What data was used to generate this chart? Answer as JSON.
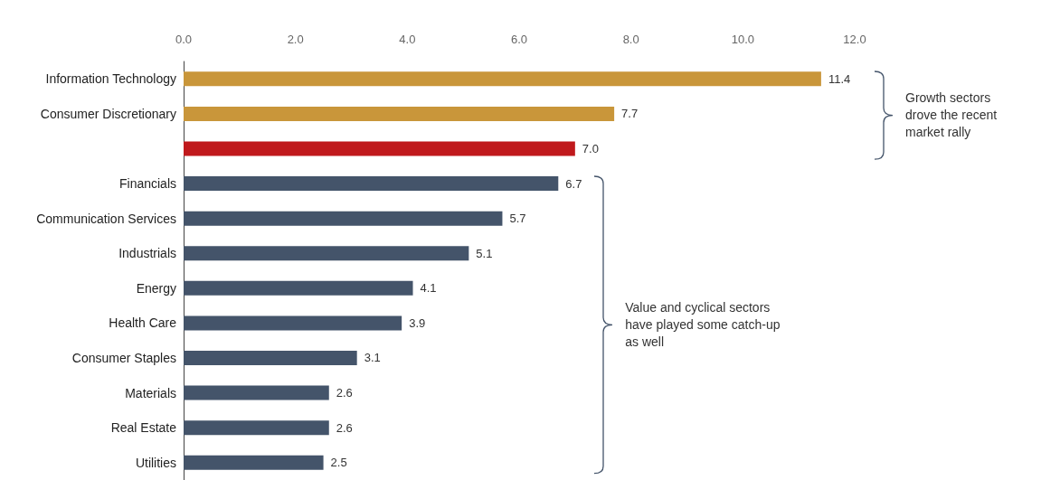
{
  "chart_data": {
    "type": "bar",
    "orientation": "horizontal",
    "categories": [
      "Information Technology",
      "Consumer Discretionary",
      null,
      "Financials",
      "Communication Services",
      "Industrials",
      "Energy",
      "Health Care",
      "Consumer Staples",
      "Materials",
      "Real Estate",
      "Utilities"
    ],
    "values": [
      11.4,
      7.7,
      7.0,
      6.7,
      5.7,
      5.1,
      4.1,
      3.9,
      3.1,
      2.6,
      2.6,
      2.5
    ],
    "colors": [
      "#c9963a",
      "#c9963a",
      "#c0191c",
      "#44546a",
      "#44546a",
      "#44546a",
      "#44546a",
      "#44546a",
      "#44546a",
      "#44546a",
      "#44546a",
      "#44546a"
    ],
    "value_labels": [
      "11.4",
      "7.7",
      "7.0",
      "6.7",
      "5.7",
      "5.1",
      "4.1",
      "3.9",
      "3.1",
      "2.6",
      "2.6",
      "2.5"
    ],
    "xlim": [
      0,
      12
    ],
    "xticks": [
      {
        "value": 0,
        "label": "0.0"
      },
      {
        "value": 2,
        "label": "2.0"
      },
      {
        "value": 4,
        "label": "4.0"
      },
      {
        "value": 6,
        "label": "6.0"
      },
      {
        "value": 8,
        "label": "8.0"
      },
      {
        "value": 10,
        "label": "10.0"
      },
      {
        "value": 12,
        "label": "12.0"
      }
    ],
    "grid": false,
    "annotations": [
      "Growth sectors drove the recent market rally",
      "Value and cyclical sectors have played some catch-up as well"
    ]
  }
}
